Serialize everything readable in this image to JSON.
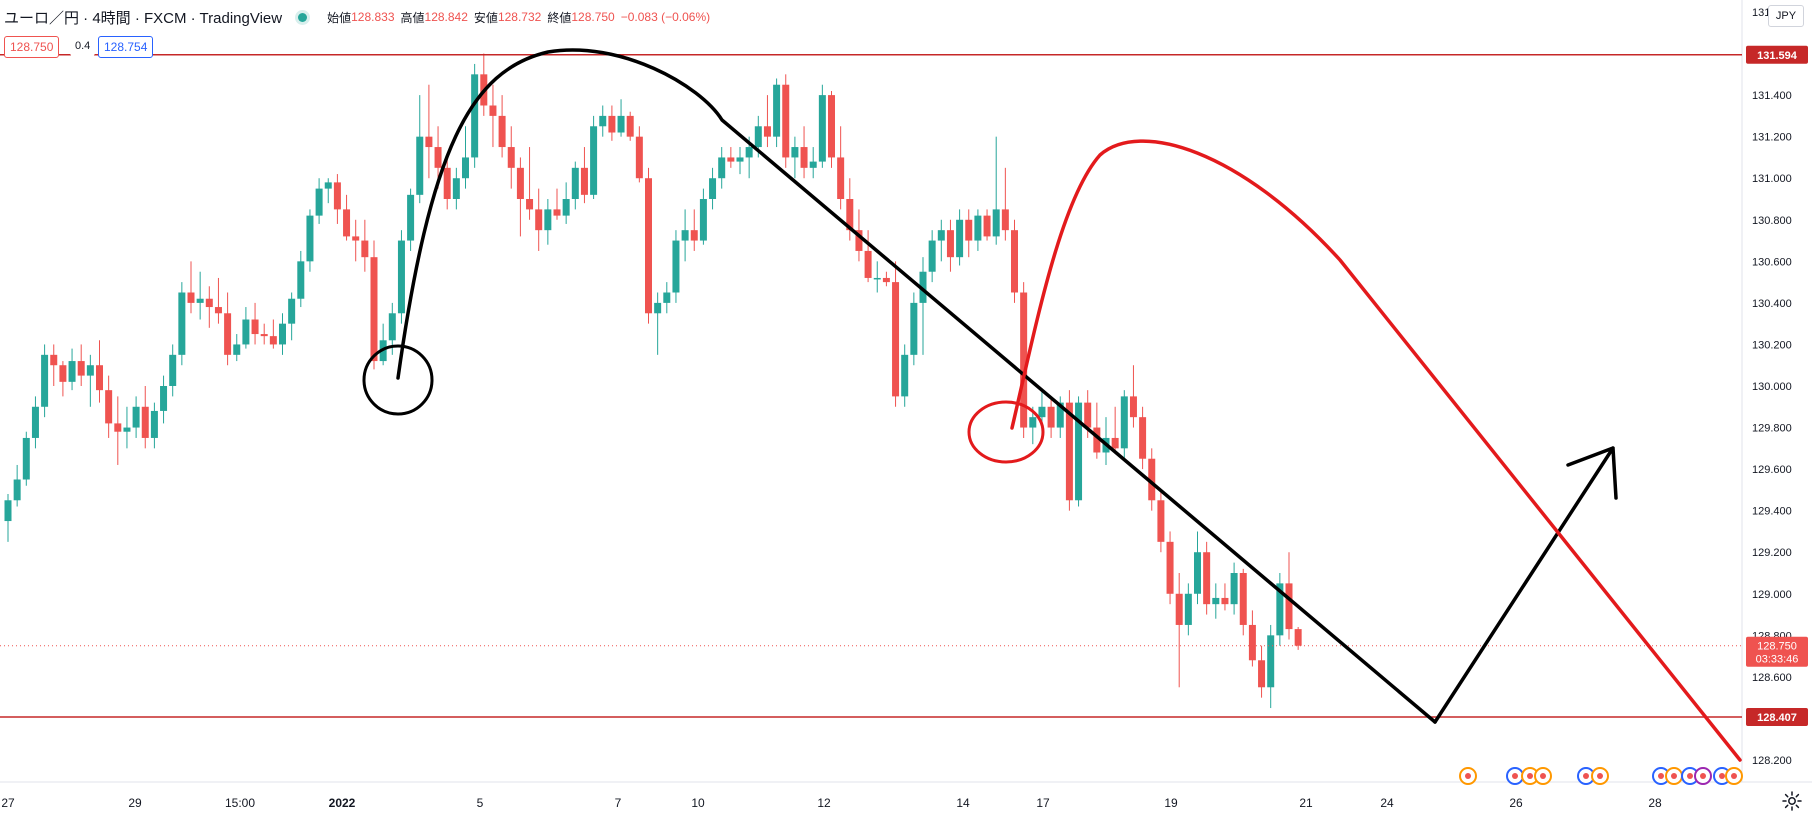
{
  "header": {
    "symbol": "ユーロ／円 · 4時間 · FXCM · TradingView",
    "open_label": "始値",
    "open_value": "128.833",
    "high_label": "高値",
    "high_value": "128.842",
    "low_label": "安値",
    "low_value": "128.732",
    "close_label": "終値",
    "close_value": "128.750",
    "change": "−0.083 (−0.06%)"
  },
  "price_boxes": {
    "bid": "128.750",
    "spread": "0.4",
    "ask": "128.754"
  },
  "currency": "JPY",
  "colors": {
    "up": "#26a69a",
    "down": "#ef5350",
    "level_line": "#c62828",
    "drawing_black": "#000000",
    "drawing_red": "#e31a1c"
  },
  "chart_data": {
    "type": "candlestick",
    "y_axis": {
      "ticks": [
        "128.200",
        "128.400",
        "128.600",
        "128.800",
        "129.000",
        "129.200",
        "129.400",
        "129.600",
        "129.800",
        "130.000",
        "130.200",
        "130.400",
        "130.600",
        "130.800",
        "131.000",
        "131.200",
        "131.400",
        "131.600",
        "131.800"
      ],
      "range": [
        128.1,
        131.85
      ]
    },
    "x_axis": {
      "labels": [
        "27",
        "29",
        "15:00",
        "2022",
        "5",
        "7",
        "10",
        "12",
        "14",
        "17",
        "19",
        "21",
        "24",
        "26",
        "28"
      ]
    },
    "horizontal_levels": [
      {
        "value": 131.594,
        "label": "131.594"
      },
      {
        "value": 128.407,
        "label": "128.407"
      }
    ],
    "current_price": {
      "value": 128.75,
      "label": "128.750",
      "countdown": "03:33:46"
    },
    "candles": [
      [
        129.35,
        129.48,
        129.25,
        129.45
      ],
      [
        129.45,
        129.62,
        129.42,
        129.55
      ],
      [
        129.55,
        129.78,
        129.52,
        129.75
      ],
      [
        129.75,
        129.95,
        129.7,
        129.9
      ],
      [
        129.9,
        130.2,
        129.85,
        130.15
      ],
      [
        130.15,
        130.2,
        130.0,
        130.1
      ],
      [
        130.1,
        130.12,
        129.95,
        130.02
      ],
      [
        130.02,
        130.18,
        129.98,
        130.12
      ],
      [
        130.12,
        130.2,
        130.0,
        130.05
      ],
      [
        130.05,
        130.15,
        129.9,
        130.1
      ],
      [
        130.1,
        130.22,
        129.92,
        129.98
      ],
      [
        129.98,
        130.05,
        129.75,
        129.82
      ],
      [
        129.82,
        129.95,
        129.62,
        129.78
      ],
      [
        129.78,
        129.9,
        129.7,
        129.8
      ],
      [
        129.8,
        129.95,
        129.75,
        129.9
      ],
      [
        129.9,
        130.0,
        129.7,
        129.75
      ],
      [
        129.75,
        129.92,
        129.7,
        129.88
      ],
      [
        129.88,
        130.05,
        129.82,
        130.0
      ],
      [
        130.0,
        130.2,
        129.95,
        130.15
      ],
      [
        130.15,
        130.5,
        130.1,
        130.45
      ],
      [
        130.45,
        130.6,
        130.35,
        130.4
      ],
      [
        130.4,
        130.55,
        130.32,
        130.42
      ],
      [
        130.42,
        130.48,
        130.28,
        130.38
      ],
      [
        130.38,
        130.52,
        130.3,
        130.35
      ],
      [
        130.35,
        130.45,
        130.1,
        130.15
      ],
      [
        130.15,
        130.25,
        130.12,
        130.2
      ],
      [
        130.2,
        130.38,
        130.18,
        130.32
      ],
      [
        130.32,
        130.4,
        130.2,
        130.25
      ],
      [
        130.25,
        130.3,
        130.2,
        130.24
      ],
      [
        130.24,
        130.32,
        130.18,
        130.2
      ],
      [
        130.2,
        130.35,
        130.15,
        130.3
      ],
      [
        130.3,
        130.45,
        130.22,
        130.42
      ],
      [
        130.42,
        130.65,
        130.38,
        130.6
      ],
      [
        130.6,
        130.85,
        130.55,
        130.82
      ],
      [
        130.82,
        131.0,
        130.78,
        130.95
      ],
      [
        130.95,
        131.0,
        130.88,
        130.98
      ],
      [
        130.98,
        131.02,
        130.78,
        130.85
      ],
      [
        130.85,
        130.92,
        130.7,
        130.72
      ],
      [
        130.72,
        130.8,
        130.6,
        130.7
      ],
      [
        130.7,
        130.8,
        130.55,
        130.62
      ],
      [
        130.62,
        130.7,
        130.08,
        130.12
      ],
      [
        130.12,
        130.3,
        130.1,
        130.22
      ],
      [
        130.22,
        130.4,
        130.15,
        130.35
      ],
      [
        130.35,
        130.75,
        130.3,
        130.7
      ],
      [
        130.7,
        130.95,
        130.65,
        130.92
      ],
      [
        130.92,
        131.4,
        130.88,
        131.2
      ],
      [
        131.2,
        131.45,
        131.0,
        131.15
      ],
      [
        131.15,
        131.25,
        130.95,
        131.05
      ],
      [
        131.05,
        131.12,
        130.85,
        130.9
      ],
      [
        130.9,
        131.05,
        130.85,
        131.0
      ],
      [
        131.0,
        131.25,
        130.95,
        131.1
      ],
      [
        131.1,
        131.55,
        131.05,
        131.5
      ],
      [
        131.5,
        131.6,
        131.3,
        131.35
      ],
      [
        131.35,
        131.45,
        131.15,
        131.3
      ],
      [
        131.3,
        131.4,
        131.1,
        131.15
      ],
      [
        131.15,
        131.25,
        130.95,
        131.05
      ],
      [
        131.05,
        131.1,
        130.72,
        130.9
      ],
      [
        130.9,
        131.15,
        130.8,
        130.85
      ],
      [
        130.85,
        130.95,
        130.65,
        130.75
      ],
      [
        130.75,
        130.9,
        130.68,
        130.85
      ],
      [
        130.85,
        130.95,
        130.8,
        130.82
      ],
      [
        130.82,
        130.98,
        130.78,
        130.9
      ],
      [
        130.9,
        131.08,
        130.85,
        131.05
      ],
      [
        131.05,
        131.15,
        130.88,
        130.92
      ],
      [
        130.92,
        131.3,
        130.9,
        131.25
      ],
      [
        131.25,
        131.35,
        131.2,
        131.3
      ],
      [
        131.3,
        131.35,
        131.18,
        131.22
      ],
      [
        131.22,
        131.38,
        131.2,
        131.3
      ],
      [
        131.3,
        131.32,
        131.18,
        131.2
      ],
      [
        131.2,
        131.25,
        130.98,
        131.0
      ],
      [
        131.0,
        131.05,
        130.3,
        130.35
      ],
      [
        130.35,
        130.45,
        130.15,
        130.4
      ],
      [
        130.4,
        130.5,
        130.35,
        130.45
      ],
      [
        130.45,
        130.75,
        130.4,
        130.7
      ],
      [
        130.7,
        130.85,
        130.6,
        130.75
      ],
      [
        130.75,
        130.85,
        130.65,
        130.7
      ],
      [
        130.7,
        130.95,
        130.68,
        130.9
      ],
      [
        130.9,
        131.05,
        130.85,
        131.0
      ],
      [
        131.0,
        131.15,
        130.95,
        131.1
      ],
      [
        131.1,
        131.15,
        131.05,
        131.08
      ],
      [
        131.08,
        131.15,
        131.02,
        131.1
      ],
      [
        131.1,
        131.2,
        131.0,
        131.15
      ],
      [
        131.15,
        131.3,
        131.1,
        131.25
      ],
      [
        131.25,
        131.4,
        131.15,
        131.2
      ],
      [
        131.2,
        131.48,
        131.15,
        131.45
      ],
      [
        131.45,
        131.5,
        131.05,
        131.1
      ],
      [
        131.1,
        131.2,
        131.0,
        131.15
      ],
      [
        131.15,
        131.25,
        131.0,
        131.05
      ],
      [
        131.05,
        131.15,
        131.0,
        131.08
      ],
      [
        131.08,
        131.45,
        131.05,
        131.4
      ],
      [
        131.4,
        131.42,
        131.05,
        131.1
      ],
      [
        131.1,
        131.25,
        130.85,
        130.9
      ],
      [
        130.9,
        131.0,
        130.7,
        130.75
      ],
      [
        130.75,
        130.85,
        130.6,
        130.65
      ],
      [
        130.65,
        130.75,
        130.5,
        130.52
      ],
      [
        130.52,
        130.6,
        130.45,
        130.52
      ],
      [
        130.52,
        130.55,
        130.48,
        130.5
      ],
      [
        130.5,
        130.6,
        129.9,
        129.95
      ],
      [
        129.95,
        130.2,
        129.9,
        130.15
      ],
      [
        130.15,
        130.45,
        130.1,
        130.4
      ],
      [
        130.4,
        130.62,
        130.15,
        130.55
      ],
      [
        130.55,
        130.75,
        130.5,
        130.7
      ],
      [
        130.7,
        130.8,
        130.6,
        130.75
      ],
      [
        130.75,
        130.8,
        130.55,
        130.62
      ],
      [
        130.62,
        130.85,
        130.58,
        130.8
      ],
      [
        130.8,
        130.85,
        130.62,
        130.7
      ],
      [
        130.7,
        130.85,
        130.65,
        130.82
      ],
      [
        130.82,
        130.85,
        130.7,
        130.72
      ],
      [
        130.72,
        131.2,
        130.68,
        130.85
      ],
      [
        130.85,
        131.05,
        130.7,
        130.75
      ],
      [
        130.75,
        130.8,
        130.4,
        130.45
      ],
      [
        130.45,
        130.5,
        129.75,
        129.8
      ],
      [
        129.8,
        129.9,
        129.72,
        129.85
      ],
      [
        129.85,
        129.98,
        129.75,
        129.9
      ],
      [
        129.9,
        129.95,
        129.75,
        129.8
      ],
      [
        129.8,
        129.95,
        129.75,
        129.92
      ],
      [
        129.92,
        129.98,
        129.4,
        129.45
      ],
      [
        129.45,
        129.95,
        129.42,
        129.92
      ],
      [
        129.92,
        129.98,
        129.75,
        129.8
      ],
      [
        129.8,
        129.92,
        129.65,
        129.68
      ],
      [
        129.68,
        129.85,
        129.62,
        129.75
      ],
      [
        129.75,
        129.9,
        129.68,
        129.7
      ],
      [
        129.7,
        129.98,
        129.65,
        129.95
      ],
      [
        129.95,
        130.1,
        129.8,
        129.85
      ],
      [
        129.85,
        129.9,
        129.6,
        129.65
      ],
      [
        129.65,
        129.7,
        129.4,
        129.45
      ],
      [
        129.45,
        129.5,
        129.2,
        129.25
      ],
      [
        129.25,
        129.3,
        128.95,
        129.0
      ],
      [
        129.0,
        129.1,
        128.55,
        128.85
      ],
      [
        128.85,
        129.05,
        128.8,
        129.0
      ],
      [
        129.0,
        129.3,
        128.95,
        129.2
      ],
      [
        129.2,
        129.25,
        128.9,
        128.95
      ],
      [
        128.95,
        129.05,
        128.88,
        128.98
      ],
      [
        128.98,
        129.05,
        128.92,
        128.95
      ],
      [
        128.95,
        129.15,
        128.9,
        129.1
      ],
      [
        129.1,
        129.12,
        128.8,
        128.85
      ],
      [
        128.85,
        128.92,
        128.65,
        128.68
      ],
      [
        128.68,
        128.75,
        128.5,
        128.55
      ],
      [
        128.55,
        128.85,
        128.45,
        128.8
      ],
      [
        128.8,
        129.1,
        128.75,
        129.05
      ],
      [
        129.05,
        129.2,
        128.78,
        128.83
      ],
      [
        128.83,
        128.84,
        128.73,
        128.75
      ]
    ]
  }
}
